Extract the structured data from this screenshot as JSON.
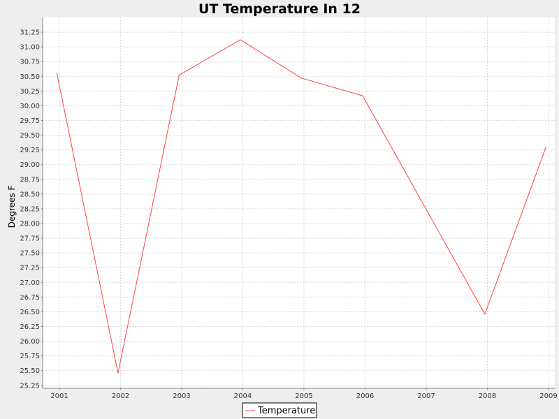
{
  "chart_data": {
    "type": "line",
    "title": "UT Temperature In 12",
    "ylabel": "Degrees F",
    "xlabel": "",
    "x_ticks": [
      "2001",
      "2002",
      "2003",
      "2004",
      "2005",
      "2006",
      "2007",
      "2008",
      "2009"
    ],
    "y_ticks": [
      "25.25",
      "25.50",
      "25.75",
      "26.00",
      "26.25",
      "26.50",
      "26.75",
      "27.00",
      "27.25",
      "27.50",
      "27.75",
      "28.00",
      "28.25",
      "28.50",
      "28.75",
      "29.00",
      "29.25",
      "29.50",
      "29.75",
      "30.00",
      "30.25",
      "30.50",
      "30.75",
      "31.00",
      "31.25"
    ],
    "ylim": [
      25.2,
      31.5
    ],
    "grid": true,
    "legend": "bottom",
    "series": [
      {
        "name": "Temperature",
        "color": "#ff4040",
        "points": [
          {
            "x": "2000-12",
            "y": 30.55
          },
          {
            "x": "2001-12",
            "y": 25.46
          },
          {
            "x": "2002-12",
            "y": 30.52
          },
          {
            "x": "2003-12",
            "y": 31.12
          },
          {
            "x": "2004-12",
            "y": 30.47
          },
          {
            "x": "2005-12",
            "y": 30.17
          },
          {
            "x": "2007-12",
            "y": 26.46
          },
          {
            "x": "2008-12",
            "y": 29.3
          }
        ]
      }
    ]
  }
}
